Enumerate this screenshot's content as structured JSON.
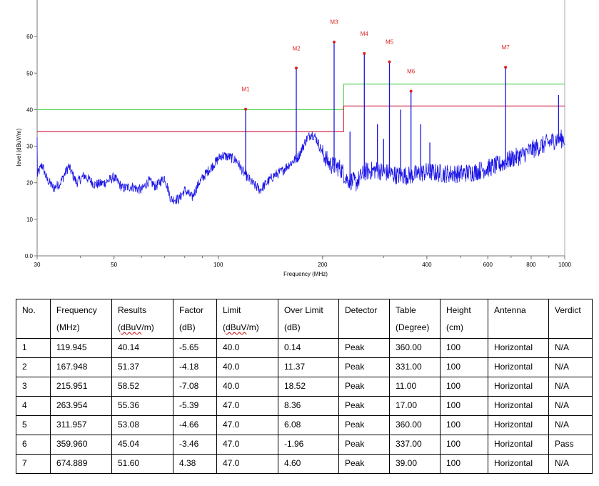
{
  "chart_data": {
    "type": "line",
    "xlabel": "Frequency (MHz)",
    "ylabel": "level (dBuV/m)",
    "xscale": "log",
    "xlim": [
      30,
      1000
    ],
    "ylim": [
      0,
      70
    ],
    "x_ticks": [
      30,
      50,
      100,
      200,
      400,
      600,
      800,
      1000
    ],
    "y_ticks": [
      "0.0",
      "10",
      "20",
      "30",
      "40",
      "50",
      "60"
    ],
    "grid": false,
    "colors": {
      "trace": "#1a14e6",
      "limit_qp": "#d42a4a",
      "limit_qp2": "#5ad45a",
      "marker": "#dd2222"
    },
    "limit_lines": [
      {
        "color": "#5ad45a",
        "points": [
          [
            30,
            40
          ],
          [
            230,
            40
          ],
          [
            230,
            47
          ],
          [
            1000,
            47
          ]
        ]
      },
      {
        "color": "#d42a4a",
        "points": [
          [
            30,
            34
          ],
          [
            230,
            34
          ],
          [
            230,
            41
          ],
          [
            1000,
            41
          ]
        ]
      }
    ],
    "trace_anchors": [
      [
        30,
        22
      ],
      [
        31,
        25
      ],
      [
        32,
        21
      ],
      [
        33.5,
        18.5
      ],
      [
        35,
        20
      ],
      [
        37,
        24.5
      ],
      [
        39,
        20
      ],
      [
        41,
        22
      ],
      [
        44,
        19.5
      ],
      [
        47,
        20
      ],
      [
        50,
        21.5
      ],
      [
        53,
        18.5
      ],
      [
        56,
        19
      ],
      [
        60,
        18
      ],
      [
        63,
        20.5
      ],
      [
        66,
        19
      ],
      [
        70,
        21.5
      ],
      [
        73,
        15.5
      ],
      [
        77,
        15.5
      ],
      [
        80,
        18
      ],
      [
        84,
        16
      ],
      [
        88,
        20
      ],
      [
        93,
        23
      ],
      [
        97,
        25
      ],
      [
        102,
        27.5
      ],
      [
        108,
        27
      ],
      [
        113,
        26
      ],
      [
        118,
        23
      ],
      [
        125,
        20
      ],
      [
        132,
        18
      ],
      [
        138,
        20
      ],
      [
        145,
        22
      ],
      [
        152,
        23
      ],
      [
        160,
        25
      ],
      [
        170,
        27
      ],
      [
        180,
        32
      ],
      [
        186,
        33.5
      ],
      [
        192,
        32
      ],
      [
        200,
        28
      ],
      [
        210,
        25
      ],
      [
        225,
        24
      ],
      [
        235,
        21
      ],
      [
        250,
        20
      ],
      [
        265,
        23
      ],
      [
        285,
        23.5
      ],
      [
        300,
        23
      ],
      [
        330,
        22
      ],
      [
        360,
        22
      ],
      [
        400,
        23
      ],
      [
        450,
        22.5
      ],
      [
        500,
        22.5
      ],
      [
        550,
        23
      ],
      [
        600,
        24
      ],
      [
        650,
        25
      ],
      [
        700,
        26.5
      ],
      [
        750,
        27.5
      ],
      [
        800,
        29
      ],
      [
        850,
        30
      ],
      [
        900,
        31
      ],
      [
        950,
        32
      ],
      [
        1000,
        32
      ]
    ],
    "spikes": [
      [
        119.945,
        40.14
      ],
      [
        167.948,
        51.37
      ],
      [
        215.951,
        58.52
      ],
      [
        263.954,
        55.36
      ],
      [
        311.957,
        53.08
      ],
      [
        359.96,
        45.04
      ],
      [
        674.889,
        51.6
      ],
      [
        240,
        34
      ],
      [
        288,
        36
      ],
      [
        300,
        32
      ],
      [
        336,
        40
      ],
      [
        384,
        36
      ],
      [
        408,
        31
      ],
      [
        960,
        44
      ]
    ],
    "markers": [
      {
        "label": "M1",
        "x": 119.945,
        "y": 40.14
      },
      {
        "label": "M2",
        "x": 167.948,
        "y": 51.37
      },
      {
        "label": "M3",
        "x": 215.951,
        "y": 58.52
      },
      {
        "label": "M4",
        "x": 263.954,
        "y": 55.36
      },
      {
        "label": "M5",
        "x": 311.957,
        "y": 53.08
      },
      {
        "label": "M6",
        "x": 359.96,
        "y": 45.04
      },
      {
        "label": "M7",
        "x": 674.889,
        "y": 51.6
      }
    ]
  },
  "table": {
    "headers": [
      [
        "No."
      ],
      [
        "Frequency",
        "(MHz)"
      ],
      [
        "Results",
        "(dBuV/m)"
      ],
      [
        "Factor",
        "(dB)"
      ],
      [
        "Limit",
        "(dBuV/m)"
      ],
      [
        "Over Limit",
        "(dB)"
      ],
      [
        "Detector"
      ],
      [
        "Table",
        "(Degree)"
      ],
      [
        "Height",
        "(cm)"
      ],
      [
        "Antenna"
      ],
      [
        "Verdict"
      ]
    ],
    "rows": [
      [
        "1",
        "119.945",
        "40.14",
        "-5.65",
        "40.0",
        "0.14",
        "Peak",
        "360.00",
        "100",
        "Horizontal",
        "N/A"
      ],
      [
        "2",
        "167.948",
        "51.37",
        "-4.18",
        "40.0",
        "11.37",
        "Peak",
        "331.00",
        "100",
        "Horizontal",
        "N/A"
      ],
      [
        "3",
        "215.951",
        "58.52",
        "-7.08",
        "40.0",
        "18.52",
        "Peak",
        "11.00",
        "100",
        "Horizontal",
        "N/A"
      ],
      [
        "4",
        "263.954",
        "55.36",
        "-5.39",
        "47.0",
        "8.36",
        "Peak",
        "17.00",
        "100",
        "Horizontal",
        "N/A"
      ],
      [
        "5",
        "311.957",
        "53.08",
        "-4.66",
        "47.0",
        "6.08",
        "Peak",
        "360.00",
        "100",
        "Horizontal",
        "N/A"
      ],
      [
        "6",
        "359.960",
        "45.04",
        "-3.46",
        "47.0",
        "-1.96",
        "Peak",
        "337.00",
        "100",
        "Horizontal",
        "Pass"
      ],
      [
        "7",
        "674.889",
        "51.60",
        "4.38",
        "47.0",
        "4.60",
        "Peak",
        "39.00",
        "100",
        "Horizontal",
        "N/A"
      ]
    ]
  }
}
